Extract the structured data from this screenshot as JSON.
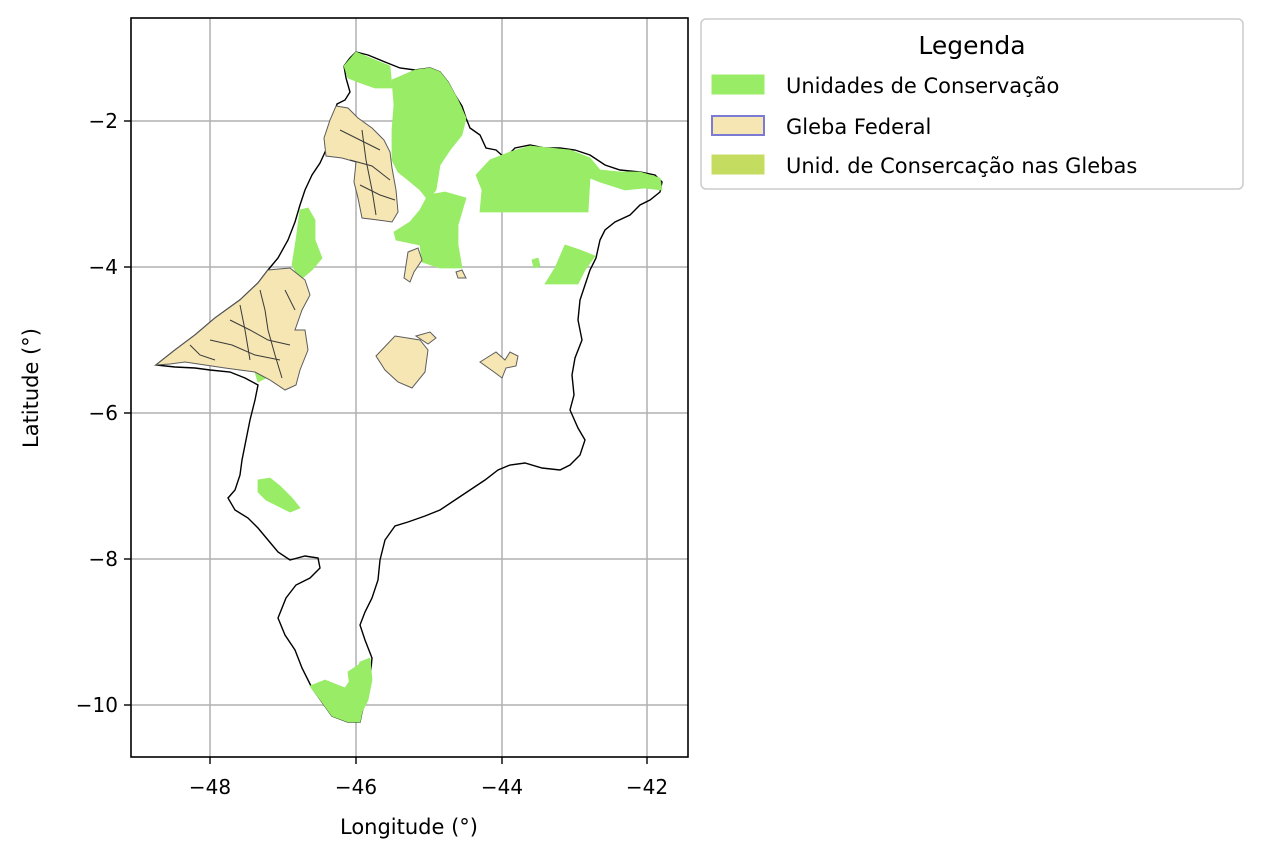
{
  "chart_data": {
    "type": "map",
    "xlabel": "Longitude (°)",
    "ylabel": "Latitude (°)",
    "xlim": [
      -49.1,
      -41.45
    ],
    "ylim": [
      -10.7,
      -0.55
    ],
    "xticks": [
      -48,
      -46,
      -44,
      -42
    ],
    "yticks": [
      -2,
      -4,
      -6,
      -8,
      -10
    ],
    "xtick_labels": [
      "−48",
      "−46",
      "−44",
      "−42"
    ],
    "ytick_labels": [
      "−2",
      "−4",
      "−6",
      "−8",
      "−10"
    ],
    "grid": true,
    "legend": {
      "title": "Legenda",
      "placement": "outside-top-right",
      "entries": [
        {
          "label": "Unidades de Conservação",
          "color": "#98ec66",
          "edge": "#98ec66"
        },
        {
          "label": "Gleba Federal",
          "color": "#f5e6b4",
          "edge": "#7b7bd6"
        },
        {
          "label": "Unid. de Consercação nas Glebas",
          "color": "#c4dd60",
          "edge": "#c4dd60"
        }
      ]
    },
    "colors": {
      "conservation_units": "#98ec66",
      "federal_land": "#f5e6b4",
      "federal_land_edge": "#6b6b6b",
      "boundary": "#000000",
      "grid": "#b0b0b0"
    }
  }
}
